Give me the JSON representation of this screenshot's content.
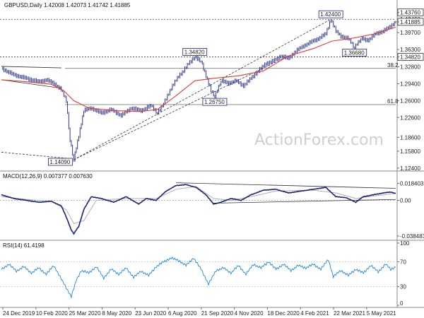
{
  "watermark": "ActionForex.com",
  "chart_data": [
    {
      "type": "candlestick",
      "title": "GBPUSD,Daily  1.42008 1.42073 1.41742 1.41885",
      "symbol": "GBPUSD",
      "timeframe": "Daily",
      "ohlc_readout": {
        "open": 1.42008,
        "high": 1.42073,
        "low": 1.41742,
        "close": 1.41885
      },
      "ylim": [
        1.121,
        1.44
      ],
      "y_ticks": [
        "1.42400",
        "1.39700",
        "1.36300",
        "1.32800",
        "1.29400",
        "1.26000",
        "1.22600",
        "1.18600",
        "1.15800",
        "1.12400"
      ],
      "x_ticks": [
        "24 Dec 2019",
        "10 Feb 2020",
        "25 Mar 2020",
        "8 May 2020",
        "23 Jun 2020",
        "6 Aug 2020",
        "21 Sep 2020",
        "4 Nov 2020",
        "18 Dec 2020",
        "4 Feb 2021",
        "22 Mar 2021",
        "5 May 2021"
      ],
      "price_path": [
        [
          0,
          1.325
        ],
        [
          10,
          1.312
        ],
        [
          20,
          1.305
        ],
        [
          30,
          1.298
        ],
        [
          36,
          1.302
        ],
        [
          42,
          1.295
        ],
        [
          48,
          1.282
        ],
        [
          52,
          1.26
        ],
        [
          55,
          1.18
        ],
        [
          58,
          1.1409
        ],
        [
          62,
          1.19
        ],
        [
          66,
          1.24
        ],
        [
          72,
          1.245
        ],
        [
          80,
          1.235
        ],
        [
          88,
          1.242
        ],
        [
          96,
          1.23
        ],
        [
          104,
          1.245
        ],
        [
          112,
          1.24
        ],
        [
          120,
          1.25
        ],
        [
          125,
          1.235
        ],
        [
          130,
          1.255
        ],
        [
          136,
          1.285
        ],
        [
          142,
          1.31
        ],
        [
          146,
          1.32
        ],
        [
          150,
          1.335
        ],
        [
          155,
          1.3482
        ],
        [
          160,
          1.34
        ],
        [
          164,
          1.31
        ],
        [
          168,
          1.28
        ],
        [
          171,
          1.2675
        ],
        [
          176,
          1.3
        ],
        [
          182,
          1.295
        ],
        [
          188,
          1.3
        ],
        [
          194,
          1.29
        ],
        [
          200,
          1.305
        ],
        [
          206,
          1.32
        ],
        [
          212,
          1.335
        ],
        [
          218,
          1.34
        ],
        [
          224,
          1.35
        ],
        [
          230,
          1.345
        ],
        [
          236,
          1.36
        ],
        [
          242,
          1.37
        ],
        [
          248,
          1.378
        ],
        [
          254,
          1.385
        ],
        [
          260,
          1.395
        ],
        [
          264,
          1.424
        ],
        [
          268,
          1.4
        ],
        [
          272,
          1.39
        ],
        [
          278,
          1.385
        ],
        [
          283,
          1.3668
        ],
        [
          288,
          1.385
        ],
        [
          294,
          1.382
        ],
        [
          300,
          1.395
        ],
        [
          306,
          1.4
        ],
        [
          312,
          1.41
        ],
        [
          316,
          1.4188
        ]
      ],
      "moving_average": [
        [
          0,
          1.302
        ],
        [
          20,
          1.298
        ],
        [
          40,
          1.293
        ],
        [
          50,
          1.28
        ],
        [
          58,
          1.26
        ],
        [
          70,
          1.245
        ],
        [
          90,
          1.24
        ],
        [
          110,
          1.238
        ],
        [
          125,
          1.242
        ],
        [
          140,
          1.27
        ],
        [
          155,
          1.3
        ],
        [
          170,
          1.305
        ],
        [
          190,
          1.31
        ],
        [
          210,
          1.32
        ],
        [
          230,
          1.35
        ],
        [
          250,
          1.365
        ],
        [
          265,
          1.38
        ],
        [
          280,
          1.385
        ],
        [
          300,
          1.395
        ],
        [
          316,
          1.408
        ]
      ],
      "annotations": [
        {
          "label": "1.42400",
          "x": 264,
          "y": 1.424
        },
        {
          "label": "1.34820",
          "x": 155,
          "y": 1.3482
        },
        {
          "label": "1.26750",
          "x": 171,
          "y": 1.2675
        },
        {
          "label": "1.36680",
          "x": 283,
          "y": 1.3668
        },
        {
          "label": "1.14090",
          "x": 58,
          "y": 1.1409
        }
      ],
      "fib_levels": [
        {
          "label": "38.2",
          "y": 1.325
        },
        {
          "label": "61.8",
          "y": 1.252
        }
      ],
      "horizontal_levels": [
        {
          "label": "1.43760",
          "y": 1.4376,
          "style": "box"
        },
        {
          "label": "1.42400",
          "y": 1.424,
          "style": "dashed"
        },
        {
          "label": "1.41885",
          "y": 1.4188,
          "style": "box"
        },
        {
          "label": "1.34820",
          "y": 1.3482,
          "style": "dashed-box"
        }
      ],
      "right_axis_labels": [
        {
          "label": "1.43760",
          "y": 1.4376
        },
        {
          "label": "1.42400",
          "y": 1.424
        },
        {
          "label": "1.41885",
          "y": 1.4188
        },
        {
          "label": "1.39700",
          "y": 1.397
        },
        {
          "label": "1.36300",
          "y": 1.363
        },
        {
          "label": "1.34820",
          "y": 1.3482
        },
        {
          "label": "1.32800",
          "y": 1.328
        },
        {
          "label": "1.29400",
          "y": 1.294
        },
        {
          "label": "1.26000",
          "y": 1.26
        },
        {
          "label": "1.22600",
          "y": 1.226
        },
        {
          "label": "1.18600",
          "y": 1.186
        },
        {
          "label": "1.15800",
          "y": 1.158
        },
        {
          "label": "1.12400",
          "y": 1.124
        }
      ],
      "colors": {
        "price": "#1a237e",
        "ma": "#e53935",
        "trend": "#333333",
        "label_box": "#1a237e"
      }
    },
    {
      "type": "line",
      "title": "MACD(12,26,9) 0.007377 0.007630",
      "ylim": [
        -0.04,
        0.021
      ],
      "y_ticks": [
        "0.018403",
        "0.00",
        "-0.038483"
      ],
      "macd_path": [
        [
          0,
          0.006
        ],
        [
          10,
          0.002
        ],
        [
          20,
          0.0
        ],
        [
          30,
          -0.002
        ],
        [
          40,
          -0.001
        ],
        [
          48,
          -0.006
        ],
        [
          52,
          -0.018
        ],
        [
          56,
          -0.032
        ],
        [
          58,
          -0.036
        ],
        [
          62,
          -0.028
        ],
        [
          66,
          -0.01
        ],
        [
          72,
          0.004
        ],
        [
          80,
          0.002
        ],
        [
          90,
          -0.002
        ],
        [
          100,
          0.004
        ],
        [
          110,
          -0.004
        ],
        [
          116,
          0.002
        ],
        [
          124,
          0.0
        ],
        [
          132,
          0.01
        ],
        [
          140,
          0.016
        ],
        [
          148,
          0.017
        ],
        [
          156,
          0.014
        ],
        [
          164,
          0.006
        ],
        [
          170,
          -0.004
        ],
        [
          176,
          -0.002
        ],
        [
          184,
          0.002
        ],
        [
          192,
          0.0
        ],
        [
          200,
          0.006
        ],
        [
          210,
          0.011
        ],
        [
          220,
          0.012
        ],
        [
          230,
          0.008
        ],
        [
          240,
          0.01
        ],
        [
          250,
          0.012
        ],
        [
          260,
          0.014
        ],
        [
          268,
          0.004
        ],
        [
          276,
          0.003
        ],
        [
          284,
          -0.002
        ],
        [
          290,
          0.004
        ],
        [
          298,
          0.006
        ],
        [
          306,
          0.008
        ],
        [
          312,
          0.009
        ],
        [
          316,
          0.0074
        ]
      ],
      "signal_path": [
        [
          0,
          0.004
        ],
        [
          20,
          0.001
        ],
        [
          40,
          -0.001
        ],
        [
          52,
          -0.01
        ],
        [
          58,
          -0.025
        ],
        [
          66,
          -0.022
        ],
        [
          76,
          0.0
        ],
        [
          100,
          0.002
        ],
        [
          124,
          0.002
        ],
        [
          140,
          0.012
        ],
        [
          156,
          0.015
        ],
        [
          170,
          0.002
        ],
        [
          184,
          0.0
        ],
        [
          200,
          0.004
        ],
        [
          220,
          0.01
        ],
        [
          250,
          0.011
        ],
        [
          268,
          0.008
        ],
        [
          284,
          0.002
        ],
        [
          300,
          0.005
        ],
        [
          316,
          0.0076
        ]
      ],
      "trendlines": [
        {
          "from": [
            140,
            0.019
          ],
          "to": [
            316,
            0.013
          ]
        },
        {
          "from": [
            170,
            -0.003
          ],
          "to": [
            316,
            0.001
          ]
        }
      ],
      "colors": {
        "macd": "#1a237e",
        "signal": "#b0b0b0"
      }
    },
    {
      "type": "line",
      "title": "RSI(14) 61.4198",
      "ylim": [
        0,
        100
      ],
      "y_ticks": [
        "100",
        "70",
        "30",
        "0"
      ],
      "rsi_path": [
        [
          0,
          58
        ],
        [
          6,
          66
        ],
        [
          12,
          55
        ],
        [
          18,
          62
        ],
        [
          24,
          52
        ],
        [
          30,
          60
        ],
        [
          36,
          50
        ],
        [
          42,
          64
        ],
        [
          48,
          42
        ],
        [
          52,
          28
        ],
        [
          56,
          14
        ],
        [
          60,
          40
        ],
        [
          64,
          56
        ],
        [
          70,
          52
        ],
        [
          76,
          62
        ],
        [
          82,
          44
        ],
        [
          88,
          58
        ],
        [
          94,
          50
        ],
        [
          100,
          60
        ],
        [
          106,
          45
        ],
        [
          112,
          55
        ],
        [
          118,
          48
        ],
        [
          124,
          62
        ],
        [
          130,
          70
        ],
        [
          136,
          76
        ],
        [
          142,
          72
        ],
        [
          148,
          64
        ],
        [
          154,
          76
        ],
        [
          160,
          58
        ],
        [
          166,
          34
        ],
        [
          172,
          56
        ],
        [
          178,
          60
        ],
        [
          184,
          52
        ],
        [
          190,
          64
        ],
        [
          196,
          50
        ],
        [
          202,
          66
        ],
        [
          208,
          60
        ],
        [
          214,
          70
        ],
        [
          220,
          58
        ],
        [
          226,
          66
        ],
        [
          232,
          56
        ],
        [
          238,
          64
        ],
        [
          244,
          60
        ],
        [
          250,
          66
        ],
        [
          256,
          58
        ],
        [
          262,
          74
        ],
        [
          266,
          46
        ],
        [
          272,
          56
        ],
        [
          278,
          48
        ],
        [
          284,
          58
        ],
        [
          290,
          52
        ],
        [
          296,
          64
        ],
        [
          302,
          54
        ],
        [
          308,
          66
        ],
        [
          312,
          58
        ],
        [
          316,
          61.4
        ]
      ],
      "colors": {
        "rsi": "#1e88e5"
      }
    }
  ]
}
